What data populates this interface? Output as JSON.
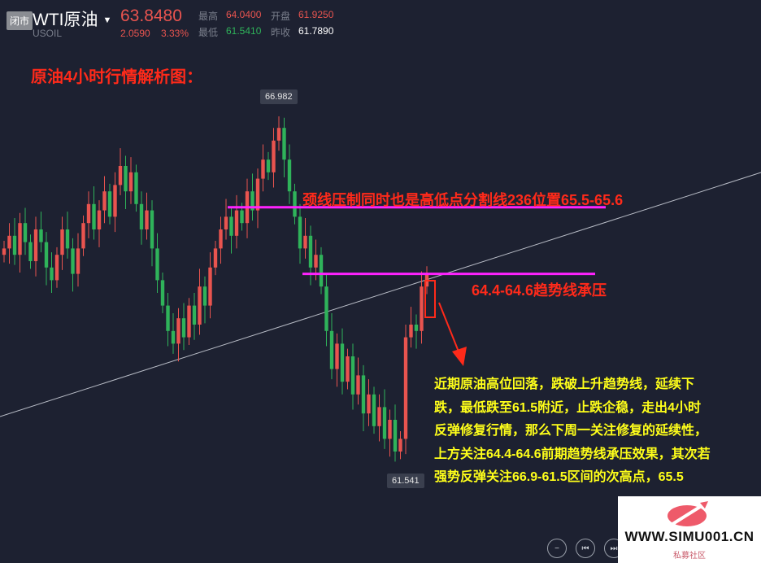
{
  "header": {
    "status_badge": "闭市",
    "symbol": "WTI原油",
    "code": "USOIL",
    "price": "63.8480",
    "change": "2.0590",
    "change_pct": "3.33%",
    "high_label": "最高",
    "high": "64.0400",
    "open_label": "开盘",
    "open": "61.9250",
    "low_label": "最低",
    "low": "61.5410",
    "prev_close_label": "昨收",
    "prev_close": "61.7890"
  },
  "annotations": {
    "title": "原油4小时行情解析图：",
    "neckline": "颈线压制同时也是高低点分割线236位置65.5-65.6",
    "trendline": "64.4-64.6趋势线承压",
    "analysis": "近期原油高位回落，跌破上升趋势线，延续下跌，最低跌至61.5附近，止跌企稳，走出4小时反弹修复行情，那么下周一关注修复的延续性，上方关注64.4-64.6前期趋势线承压效果，其次若强势反弹关注66.9-61.5区间的次高点，65.5",
    "high_tag": "66.982",
    "low_tag": "61.541"
  },
  "chart_data": {
    "type": "candlestick",
    "closes": [
      64.9,
      65.1,
      64.8,
      65.3,
      65.0,
      64.7,
      65.2,
      65.0,
      64.6,
      64.4,
      64.8,
      65.2,
      64.9,
      64.5,
      64.9,
      65.3,
      65.6,
      65.2,
      65.5,
      65.8,
      65.4,
      65.9,
      66.2,
      65.8,
      66.1,
      65.6,
      65.2,
      65.5,
      64.9,
      64.4,
      64.0,
      63.6,
      63.4,
      63.8,
      63.5,
      64.0,
      63.7,
      64.3,
      64.0,
      64.6,
      64.9,
      65.2,
      65.4,
      65.1,
      65.5,
      65.3,
      65.8,
      65.5,
      66.0,
      66.3,
      66.1,
      66.6,
      66.8,
      66.3,
      65.8,
      65.4,
      64.9,
      65.1,
      64.6,
      64.8,
      64.3,
      63.6,
      63.0,
      63.4,
      62.8,
      63.2,
      62.6,
      62.9,
      62.3,
      62.6,
      62.1,
      62.4,
      61.9,
      62.2,
      61.7,
      61.9,
      63.5,
      63.7,
      63.6,
      64.3,
      64.5
    ],
    "high_mark": 66.982,
    "low_mark": 61.541,
    "horizontal_levels": [
      65.55,
      64.5
    ],
    "colors": {
      "up": "#e9544f",
      "down": "#2fb35a",
      "level": "#ff22ff",
      "trend": "#b8bcc6"
    }
  },
  "controls": {
    "zoom_out": "−",
    "prev": "⏮",
    "next": "⏭"
  },
  "watermark": {
    "url": "WWW.SIMU001.CN",
    "sub": "私募社区"
  }
}
